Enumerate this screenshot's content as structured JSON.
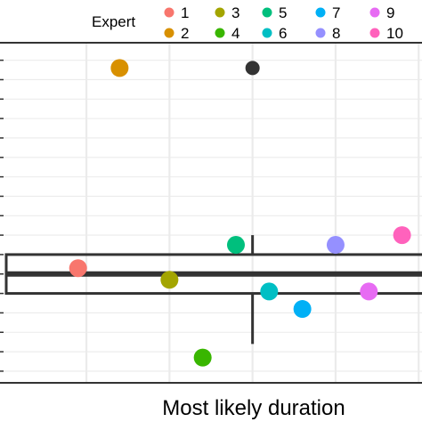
{
  "chart_data": {
    "type": "scatter",
    "title": "",
    "xlabel": "Most likely duration",
    "ylabel": "",
    "grid": true,
    "legend": {
      "title": "Expert",
      "placement": "top",
      "entries": [
        {
          "label": "1",
          "color": "#F8766D"
        },
        {
          "label": "2",
          "color": "#D89000"
        },
        {
          "label": "3",
          "color": "#A3A500"
        },
        {
          "label": "4",
          "color": "#39B600"
        },
        {
          "label": "5",
          "color": "#00BF7D"
        },
        {
          "label": "6",
          "color": "#00BFC4"
        },
        {
          "label": "7",
          "color": "#00B0F6"
        },
        {
          "label": "8",
          "color": "#9590FF"
        },
        {
          "label": "9",
          "color": "#E76BF3"
        },
        {
          "label": "10",
          "color": "#FF62BC"
        }
      ]
    },
    "boxplot": {
      "q1": 0.0,
      "median": 5.0,
      "q3": 10.0,
      "whisker_low": -13.0,
      "whisker_high": 15.0,
      "color": "#333333"
    },
    "outlier": {
      "x": 0.0,
      "y": 58.0,
      "color": "#333333"
    },
    "points": [
      {
        "expert": "1",
        "x": -10.5,
        "y": 6.5
      },
      {
        "expert": "2",
        "x": -8.0,
        "y": 58.0
      },
      {
        "expert": "3",
        "x": -5.0,
        "y": 3.5
      },
      {
        "expert": "4",
        "x": -3.0,
        "y": -16.5
      },
      {
        "expert": "5",
        "x": -1.0,
        "y": 12.5
      },
      {
        "expert": "6",
        "x": 1.0,
        "y": 0.5
      },
      {
        "expert": "7",
        "x": 3.0,
        "y": -4.0
      },
      {
        "expert": "8",
        "x": 5.0,
        "y": 12.5
      },
      {
        "expert": "9",
        "x": 7.0,
        "y": 0.5
      },
      {
        "expert": "10",
        "x": 9.0,
        "y": 15.0
      }
    ],
    "xlim": [
      -15.2,
      10.2
    ],
    "ylim": [
      -23.0,
      64.5
    ],
    "ytick_values": [
      -20,
      -15,
      -10,
      -5,
      0,
      5,
      10,
      15,
      20,
      25,
      30,
      35,
      40,
      45,
      50,
      55,
      60
    ],
    "xtick_values": [
      -10,
      -5,
      0,
      5,
      10
    ]
  }
}
